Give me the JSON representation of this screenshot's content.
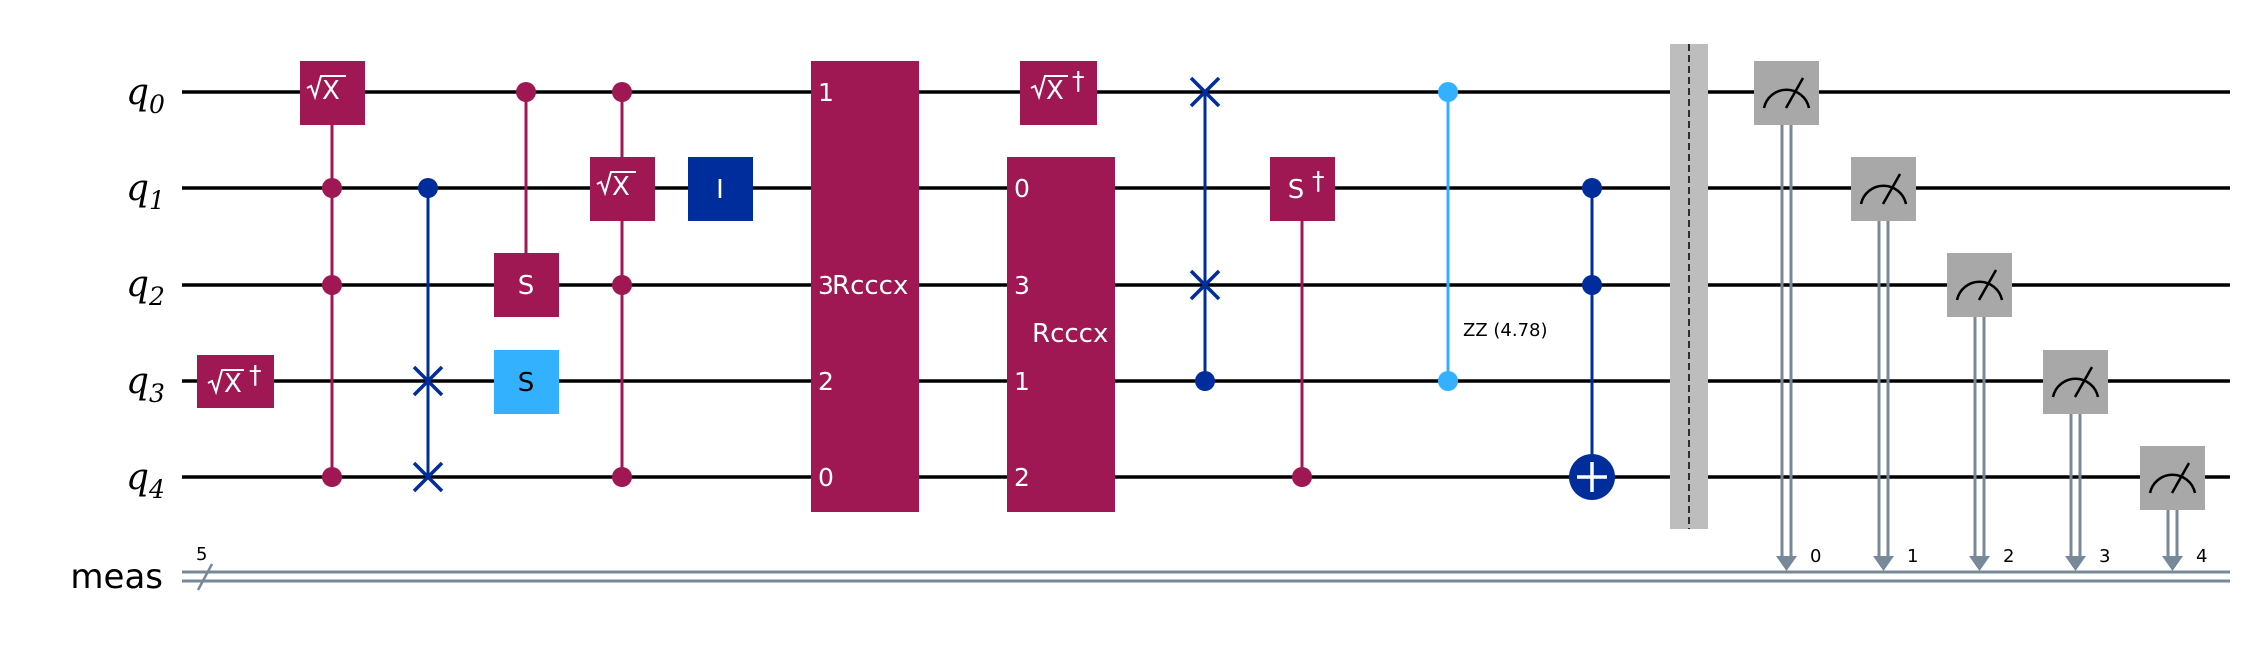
{
  "qubits": [
    {
      "name": "q",
      "sub": "0"
    },
    {
      "name": "q",
      "sub": "1"
    },
    {
      "name": "q",
      "sub": "2"
    },
    {
      "name": "q",
      "sub": "3"
    },
    {
      "name": "q",
      "sub": "4"
    }
  ],
  "classical": {
    "label": "meas",
    "bits": "5"
  },
  "gates": {
    "sxdg_label": "X",
    "dagger": "†",
    "sx_label": "X",
    "s_label": "S",
    "i_label": "I",
    "sdg_label": "S",
    "rcccx_name": "Rcccx",
    "rcccx1_pins": [
      "1",
      "3",
      "2",
      "0"
    ],
    "rcccx2_pins": [
      "0",
      "3",
      "1",
      "2"
    ],
    "rzz_label": "ZZ (4.78)"
  },
  "measure_bits": [
    "0",
    "1",
    "2",
    "3",
    "4"
  ],
  "colors": {
    "purple": "#9f1853",
    "blue": "#002d9c",
    "lightblue": "#33b1ff",
    "gray": "#a8a8a8",
    "measline": "#778899"
  }
}
